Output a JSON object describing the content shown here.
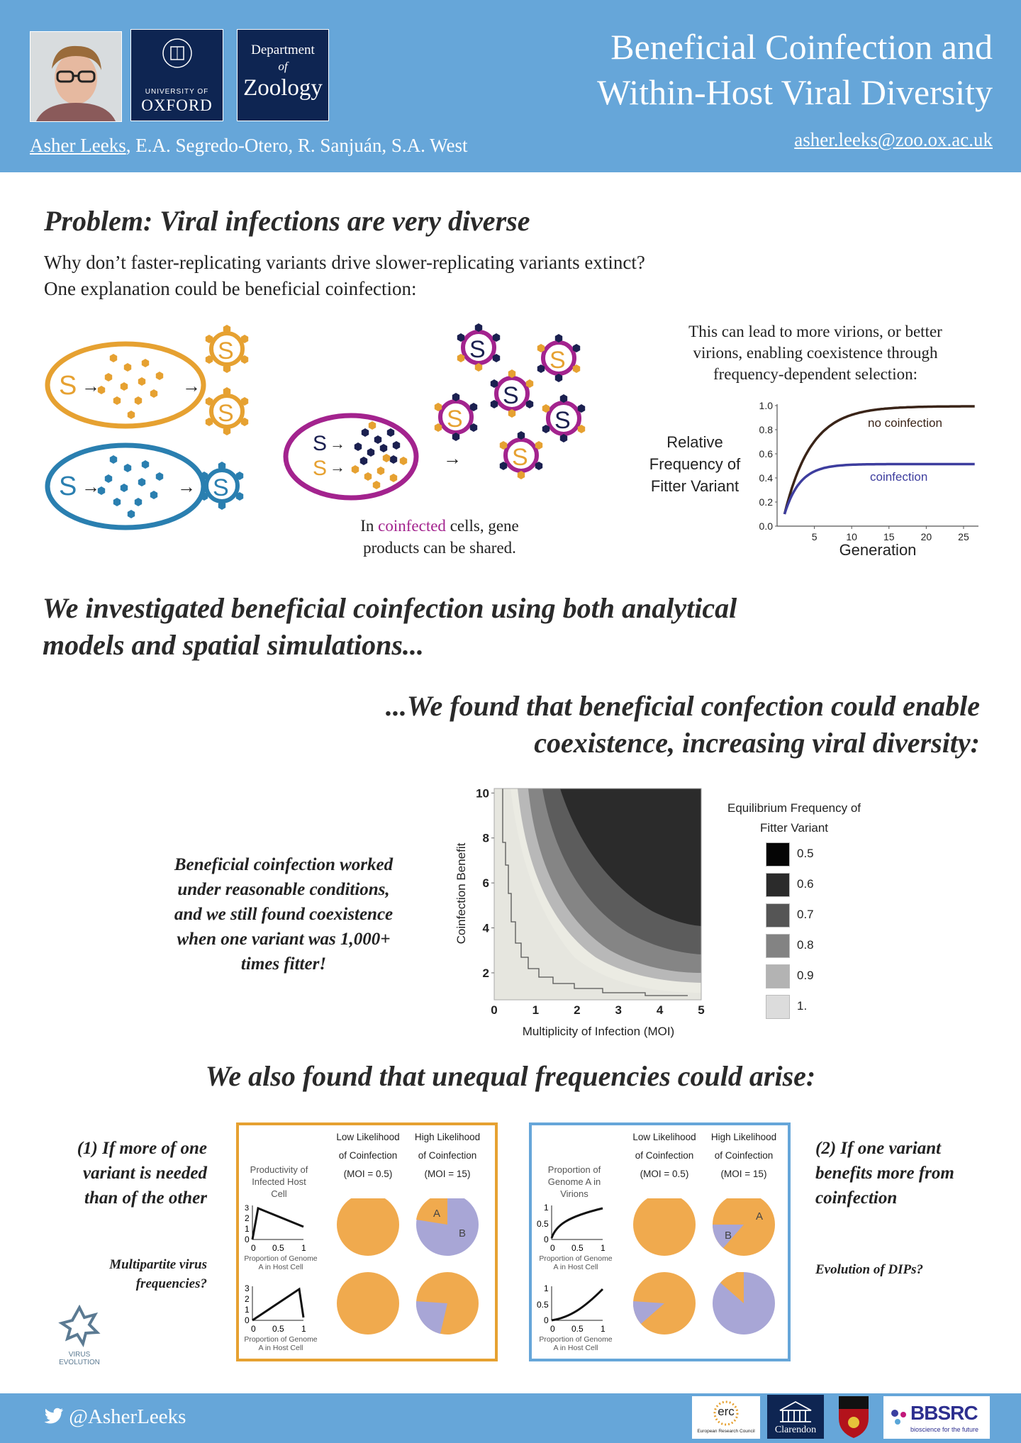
{
  "header": {
    "title_line1": "Beneficial Coinfection and",
    "title_line2": "Within-Host Viral Diversity",
    "author_first": "Asher Leeks",
    "authors_rest": ", E.A. Segredo-Otero, R. Sanjuán, S.A. West",
    "email": "asher.leeks@zoo.ox.ac.uk",
    "oxford_logo_small": "UNIVERSITY OF",
    "oxford_logo_big": "OXFORD",
    "zoology_line1": "Department",
    "zoology_line2": "of",
    "zoology_line3": "Zoology"
  },
  "problem": {
    "heading": "Problem: Viral infections are very diverse",
    "line1": "Why don’t faster-replicating variants drive slower-replicating variants extinct?",
    "line2": "One explanation could be beneficial coinfection:",
    "caption_pre": "In ",
    "caption_highlight": "coinfected",
    "caption_post": " cells, gene",
    "caption_line2": "products can be shared.",
    "right_text_1": "This can lead to more virions, or better",
    "right_text_2": "virions, enabling coexistence through",
    "right_text_3": "frequency-dependent selection:"
  },
  "freq_chart": {
    "ylabel_1": "Relative",
    "ylabel_2": "Frequency of",
    "ylabel_3": "Fitter Variant",
    "xlabel": "Generation",
    "yticks": [
      "0.0",
      "0.2",
      "0.4",
      "0.6",
      "0.8",
      "1.0"
    ],
    "xticks": [
      "5",
      "10",
      "15",
      "20",
      "25"
    ],
    "label_no": "no coinfection",
    "label_co": "coinfection",
    "color_no": "#3a2418",
    "color_co": "#3d3d9e"
  },
  "investigated": {
    "line1": "We investigated beneficial coinfection using both analytical",
    "line2": "models and spatial simulations..."
  },
  "found": {
    "line1": "...We found that beneficial confection could enable",
    "line2": "coexistence, increasing viral diversity:"
  },
  "contour": {
    "side_text_1": "Beneficial coinfection worked",
    "side_text_2": "under reasonable conditions,",
    "side_text_3": "and we still found coexistence",
    "side_text_4": "when one variant was 1,000+",
    "side_text_5": "times fitter!",
    "ylabel": "Coinfection Benefit",
    "xlabel": "Multiplicity of Infection (MOI)",
    "yticks": [
      "2",
      "4",
      "6",
      "8",
      "10"
    ],
    "xticks": [
      "0",
      "1",
      "2",
      "3",
      "4",
      "5"
    ],
    "legend_title_1": "Equilibrium Frequency of",
    "legend_title_2": "Fitter Variant",
    "legend": [
      {
        "label": "0.5",
        "color": "#050505"
      },
      {
        "label": "0.6",
        "color": "#2b2b2b"
      },
      {
        "label": "0.7",
        "color": "#555555"
      },
      {
        "label": "0.8",
        "color": "#838383"
      },
      {
        "label": "0.9",
        "color": "#b3b3b3"
      },
      {
        "label": "1.",
        "color": "#dcdcdc"
      }
    ]
  },
  "unequal": {
    "heading": "We also found that unequal frequencies could arise:",
    "left_1": "(1) If more of one",
    "left_2": "variant is needed",
    "left_3": "than of the other",
    "left_q1": "Multipartite virus",
    "left_q2": "frequencies?",
    "right_1": "(2) If one variant",
    "right_2": "benefits more from",
    "right_3": "coinfection",
    "right_q": "Evolution of DIPs?",
    "low_1": "Low Likelihood",
    "low_2": "of Coinfection",
    "low_3": "(MOI = 0.5)",
    "high_1": "High Likelihood",
    "high_2": "of Coinfection",
    "high_3": "(MOI = 15)",
    "box1_ylabel_1": "Productivity of",
    "box1_ylabel_2": "Infected Host",
    "box1_ylabel_3": "Cell",
    "box2_ylabel_1": "Proportion of",
    "box2_ylabel_2": "Genome A in",
    "box2_ylabel_3": "Virions",
    "axis_caption_1": "Proportion of Genome",
    "axis_caption_2": "A in Host Cell",
    "tick_0": "0",
    "tick_05": "0.5",
    "tick_1": "1",
    "tick_2": "2",
    "tick_3": "3",
    "label_A": "A",
    "label_B": "B",
    "pie_orange": "#f0aa4e",
    "pie_purple": "#a8a6d6"
  },
  "footer": {
    "twitter": "@AsherLeeks",
    "virus_evolution_1": "VIRUS",
    "virus_evolution_2": "EVOLUTION",
    "erc": "erc",
    "erc_sub": "European Research Council",
    "clarendon": "Clarendon",
    "bbsrc": "BBSRC",
    "bbsrc_sub": "bioscience for the future"
  },
  "colors": {
    "header_blue": "#66a6d9",
    "orange": "#e6a131",
    "blue": "#2a7fb0",
    "purple": "#a3238e",
    "navy": "#1b2050"
  }
}
